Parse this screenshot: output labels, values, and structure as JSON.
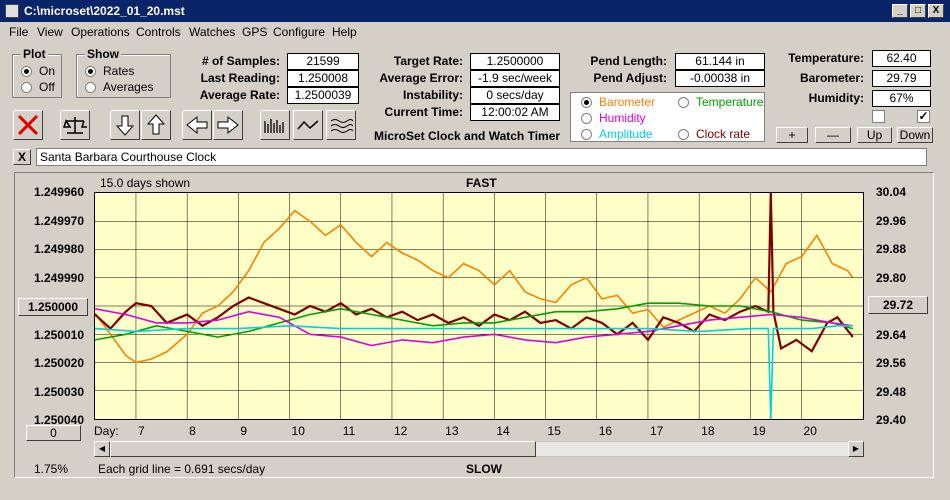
{
  "window": {
    "title": "C:\\microset\\2022_01_20.mst",
    "min": "_",
    "max": "□",
    "close": "X"
  },
  "menu": [
    "File",
    "View",
    "Operations",
    "Controls",
    "Watches",
    "GPS",
    "Configure",
    "Help"
  ],
  "plot_group": {
    "title": "Plot",
    "on": "On",
    "off": "Off"
  },
  "show_group": {
    "title": "Show",
    "rates": "Rates",
    "averages": "Averages"
  },
  "stats": {
    "samples_label": "# of Samples:",
    "samples": "21599",
    "last_label": "Last Reading:",
    "last": "1.250008",
    "avg_label": "Average Rate:",
    "avg": "1.2500039",
    "target_label": "Target Rate:",
    "target": "1.2500000",
    "avgerr_label": "Average Error:",
    "avgerr": "-1.9 sec/week",
    "instab_label": "Instability:",
    "instab": "0 secs/day",
    "time_label": "Current Time:",
    "time": "12:00:02 AM",
    "pendlen_label": "Pend Length:",
    "pendlen": "61.144 in",
    "pendadj_label": "Pend Adjust:",
    "pendadj": "-0.00038 in",
    "temp_label": "Temperature:",
    "temp": "62.40",
    "baro_label": "Barometer:",
    "baro": "29.79",
    "hum_label": "Humidity:",
    "hum": "67%"
  },
  "app_title": "MicroSet Clock and Watch Timer",
  "selector": {
    "barometer": "Barometer",
    "temperature": "Temperature",
    "humidity": "Humidity",
    "amplitude": "Amplitude",
    "clockrate": "Clock rate"
  },
  "selector_colors": {
    "barometer": "#ff8000",
    "temperature": "#00a000",
    "humidity": "#e000e0",
    "amplitude": "#00d0e0",
    "clockrate": "#800000"
  },
  "adjust": {
    "plus": "+",
    "minus": "—",
    "up": "Up",
    "down": "Down"
  },
  "clock_name": "Santa Barbara Courthouse Clock",
  "clear_btn": "X",
  "chart": {
    "days_shown": "15.0 days shown",
    "fast": "FAST",
    "slow": "SLOW",
    "left_ticks": [
      "1.249960",
      "1.249970",
      "1.249980",
      "1.249990",
      "1.250000",
      "1.250010",
      "1.250020",
      "1.250030",
      "1.250040"
    ],
    "right_ticks": [
      "30.04",
      "29.96",
      "29.88",
      "29.80",
      "29.72",
      "29.64",
      "29.56",
      "29.48",
      "29.40"
    ],
    "center_left": "1.250000",
    "center_right": "29.72",
    "zero_btn": "0",
    "day_label": "Day:",
    "days": [
      "7",
      "8",
      "9",
      "10",
      "11",
      "12",
      "13",
      "14",
      "15",
      "16",
      "17",
      "18",
      "19",
      "20"
    ],
    "gridnote": "Each grid line = 0.691 secs/day",
    "percent": "1.75%"
  },
  "chart_data": {
    "type": "line",
    "x_label": "Day:",
    "xlim": [
      6.2,
      21.2
    ],
    "ylim_left": [
      1.25004,
      1.24996
    ],
    "ylim_right": [
      29.4,
      30.04
    ],
    "series": [
      {
        "name": "Barometer",
        "color": "#ff8000",
        "axis": "right",
        "x": [
          6.2,
          6.5,
          6.8,
          7.0,
          7.3,
          7.6,
          8.0,
          8.3,
          8.6,
          8.9,
          9.2,
          9.5,
          9.8,
          10.1,
          10.4,
          10.7,
          11.0,
          11.3,
          11.6,
          11.9,
          12.2,
          12.5,
          12.8,
          13.1,
          13.4,
          13.7,
          14.0,
          14.3,
          14.6,
          14.9,
          15.2,
          15.5,
          15.8,
          16.1,
          16.4,
          16.7,
          17.0,
          17.3,
          17.6,
          17.9,
          18.2,
          18.5,
          18.8,
          19.1,
          19.4,
          19.7,
          20.0,
          20.3,
          20.6,
          20.9,
          21.0
        ],
        "y": [
          29.7,
          29.64,
          29.58,
          29.56,
          29.57,
          29.59,
          29.64,
          29.7,
          29.72,
          29.76,
          29.82,
          29.9,
          29.94,
          29.99,
          29.96,
          29.92,
          29.95,
          29.9,
          29.86,
          29.9,
          29.87,
          29.85,
          29.82,
          29.8,
          29.84,
          29.82,
          29.78,
          29.82,
          29.76,
          29.74,
          29.73,
          29.78,
          29.8,
          29.74,
          29.75,
          29.7,
          29.71,
          29.66,
          29.68,
          29.7,
          29.72,
          29.7,
          29.74,
          29.8,
          29.76,
          29.84,
          29.86,
          29.92,
          29.84,
          29.82,
          29.8
        ]
      },
      {
        "name": "Clock rate",
        "color": "#800000",
        "axis": "left",
        "x": [
          6.2,
          6.5,
          6.8,
          7.0,
          7.3,
          7.6,
          8.0,
          8.3,
          8.6,
          8.9,
          9.2,
          9.5,
          9.8,
          10.1,
          10.4,
          10.7,
          11.0,
          11.3,
          11.6,
          11.9,
          12.2,
          12.5,
          12.8,
          13.1,
          13.4,
          13.7,
          14.0,
          14.3,
          14.6,
          14.9,
          15.2,
          15.5,
          15.8,
          16.1,
          16.4,
          16.7,
          17.0,
          17.3,
          17.6,
          17.9,
          18.2,
          18.5,
          18.8,
          19.1,
          19.35,
          19.4,
          19.45,
          19.6,
          19.9,
          20.2,
          20.5,
          20.7,
          21.0
        ],
        "y": [
          1.250003,
          1.250008,
          1.250002,
          1.249999,
          1.25,
          1.250006,
          1.250003,
          1.250007,
          1.250004,
          1.25,
          1.249997,
          1.249999,
          1.250001,
          1.250003,
          1.25,
          1.250002,
          1.249999,
          1.250003,
          1.250001,
          1.250004,
          1.250002,
          1.250005,
          1.250003,
          1.250006,
          1.250004,
          1.250007,
          1.250003,
          1.250005,
          1.250002,
          1.250006,
          1.250005,
          1.250008,
          1.250004,
          1.250006,
          1.25001,
          1.250006,
          1.250012,
          1.250004,
          1.250006,
          1.250009,
          1.250003,
          1.250005,
          1.250002,
          1.25,
          1.250002,
          1.24996,
          1.250002,
          1.250015,
          1.250012,
          1.250016,
          1.250006,
          1.250004,
          1.250011
        ]
      },
      {
        "name": "Temperature",
        "color": "#00a000",
        "axis": "left",
        "x": [
          6.2,
          6.8,
          7.4,
          8.0,
          8.6,
          9.2,
          9.8,
          10.4,
          11.0,
          11.6,
          12.2,
          12.8,
          13.4,
          14.0,
          14.6,
          15.2,
          15.8,
          16.4,
          17.0,
          17.6,
          18.2,
          18.8,
          19.4,
          20.0,
          20.6,
          21.0
        ],
        "y": [
          1.250012,
          1.25001,
          1.250007,
          1.250009,
          1.250011,
          1.250009,
          1.250006,
          1.250003,
          1.250001,
          1.250003,
          1.250005,
          1.250007,
          1.250006,
          1.250006,
          1.250004,
          1.250002,
          1.250002,
          1.250001,
          1.249999,
          1.249999,
          1.25,
          1.25,
          1.250002,
          1.250005,
          1.250006,
          1.250008
        ]
      },
      {
        "name": "Humidity",
        "color": "#e000e0",
        "axis": "left",
        "x": [
          6.2,
          6.8,
          7.4,
          8.0,
          8.6,
          9.2,
          9.8,
          10.4,
          11.0,
          11.6,
          12.2,
          12.8,
          13.4,
          14.0,
          14.6,
          15.2,
          15.8,
          16.4,
          17.0,
          17.6,
          18.2,
          18.8,
          19.4,
          20.0,
          20.6,
          21.0
        ],
        "y": [
          1.250001,
          1.250003,
          1.250006,
          1.250006,
          1.250005,
          1.250002,
          1.250004,
          1.25001,
          1.250011,
          1.250014,
          1.250012,
          1.250013,
          1.250011,
          1.25001,
          1.250012,
          1.250013,
          1.250011,
          1.25001,
          1.250009,
          1.250007,
          1.250005,
          1.250004,
          1.250003,
          1.250004,
          1.250006,
          1.250007
        ]
      },
      {
        "name": "Amplitude",
        "color": "#00d0e0",
        "axis": "left",
        "x": [
          6.2,
          7.0,
          8.0,
          9.0,
          10.0,
          11.0,
          12.0,
          13.0,
          14.0,
          15.0,
          16.0,
          17.0,
          18.0,
          19.0,
          19.35,
          19.4,
          19.45,
          19.7,
          20.2,
          20.7,
          21.0
        ],
        "y": [
          1.250008,
          1.250009,
          1.250008,
          1.250008,
          1.250007,
          1.250008,
          1.250008,
          1.250008,
          1.250008,
          1.250008,
          1.250008,
          1.250008,
          1.250009,
          1.250008,
          1.250008,
          1.25004,
          1.250008,
          1.250008,
          1.250008,
          1.250007,
          1.250007
        ]
      }
    ]
  }
}
